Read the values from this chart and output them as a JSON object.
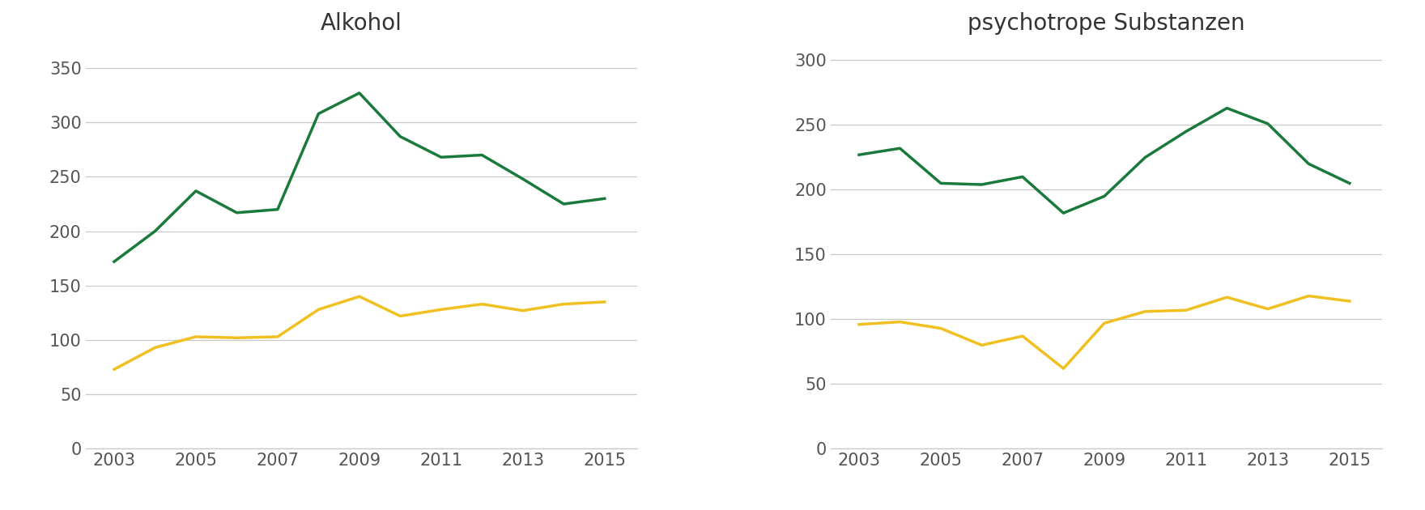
{
  "title_left": "Alkohol",
  "title_right": "psychotrope Substanzen",
  "years": [
    2003,
    2004,
    2005,
    2006,
    2007,
    2008,
    2009,
    2010,
    2011,
    2012,
    2013,
    2014,
    2015
  ],
  "alkohol_male": [
    172,
    200,
    237,
    217,
    220,
    308,
    327,
    287,
    268,
    270,
    248,
    225,
    230
  ],
  "alkohol_female": [
    73,
    93,
    103,
    102,
    103,
    128,
    140,
    122,
    128,
    133,
    127,
    133,
    135
  ],
  "psycho_male": [
    227,
    232,
    205,
    204,
    210,
    182,
    195,
    225,
    245,
    263,
    251,
    220,
    205
  ],
  "psycho_female": [
    96,
    98,
    93,
    80,
    87,
    62,
    97,
    106,
    107,
    117,
    108,
    118,
    114
  ],
  "color_male": "#1a7a3c",
  "color_female": "#f0c020",
  "line_width": 2.5,
  "left_ylim": [
    0,
    375
  ],
  "right_ylim": [
    0,
    315
  ],
  "left_yticks": [
    0,
    50,
    100,
    150,
    200,
    250,
    300,
    350
  ],
  "right_yticks": [
    0,
    50,
    100,
    150,
    200,
    250,
    300
  ],
  "xtick_labels": [
    "2003",
    "2005",
    "2007",
    "2009",
    "2011",
    "2013",
    "2015"
  ],
  "xtick_positions": [
    2003,
    2005,
    2007,
    2009,
    2011,
    2013,
    2015
  ],
  "background_color": "#ffffff",
  "grid_color": "#c8c8c8",
  "tick_color": "#555555",
  "title_fontsize": 20,
  "tick_fontsize": 15
}
